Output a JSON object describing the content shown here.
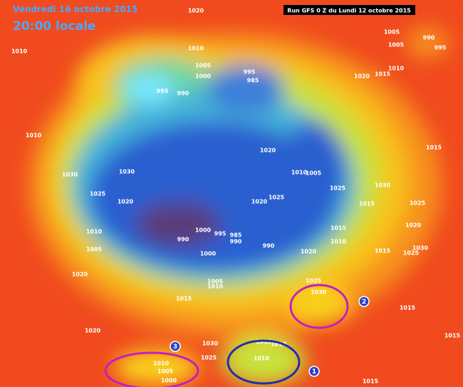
{
  "header": {
    "title": "Vendredi 16 octobre 2015",
    "time": "20:00 locale",
    "run": "Run GFS 0 Z du Lundi 12 octobre 2015"
  },
  "markers": [
    "1",
    "2",
    "3"
  ],
  "isobar_labels": [
    "1020",
    "1010",
    "1010",
    "1005",
    "1000",
    "995",
    "990",
    "995",
    "985",
    "1005",
    "1005",
    "990",
    "995",
    "1010",
    "1020",
    "1015",
    "1010",
    "1020",
    "1015",
    "1030",
    "1030",
    "1010",
    "1005",
    "1025",
    "1030",
    "1025",
    "1020",
    "1025",
    "1020",
    "1015",
    "1025",
    "1010",
    "1000",
    "995",
    "985",
    "990",
    "990",
    "1020",
    "1015",
    "1010",
    "990",
    "1005",
    "1000",
    "1020",
    "1015",
    "1030",
    "1025",
    "1020",
    "1005",
    "1010",
    "1025",
    "1030",
    "1015",
    "1015",
    "1020",
    "1015",
    "1030",
    "1010",
    "1010",
    "1010",
    "1025",
    "1010",
    "1005",
    "1000",
    "1015"
  ]
}
